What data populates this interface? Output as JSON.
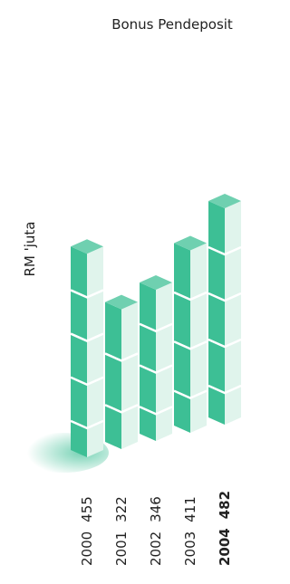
{
  "chart_data": {
    "type": "bar3d",
    "title": "Bonus Pendeposit",
    "y_label": "RM 'juta",
    "categories": [
      "2000",
      "2001",
      "2002",
      "2003",
      "2004"
    ],
    "values": [
      455,
      322,
      346,
      411,
      482
    ],
    "color": "#3dbf95"
  }
}
